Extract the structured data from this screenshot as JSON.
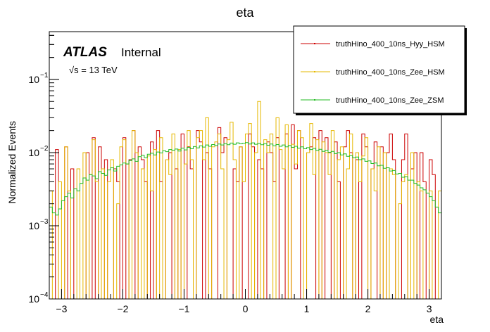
{
  "chart_data": {
    "type": "histogram",
    "title": "eta",
    "xlabel": "eta",
    "ylabel": "Normalized Events",
    "xlim": [
      -3.2,
      3.2
    ],
    "ylim": [
      0.0001,
      0.45
    ],
    "yscale": "log",
    "x_ticks": [
      -3,
      -2,
      -1,
      0,
      1,
      2,
      3
    ],
    "x_tick_labels": [
      "−3",
      "−2",
      "−1",
      "0",
      "1",
      "2",
      "3"
    ],
    "y_ticks": [
      0.0001,
      0.001,
      0.01,
      0.1
    ],
    "y_tick_bases": [
      "10",
      "10",
      "10",
      "10"
    ],
    "y_tick_exponents": [
      "−4",
      "−3",
      "−2",
      "−1"
    ],
    "atlas_label": "ATLAS",
    "atlas_status": "Internal",
    "energy_label": "√s = 13 TeV",
    "legend_position": "top-right",
    "bin_count": 128,
    "series": [
      {
        "name": "truthHino_400_10ns_Hyy_HSM",
        "color": "#cc0000",
        "values": [
          0.0001,
          0.0001,
          0.011,
          0.0001,
          0.0001,
          0.012,
          0.0001,
          0.006,
          0.0001,
          0.0001,
          0.0001,
          0.0001,
          0.01,
          0.0001,
          0.016,
          0.0001,
          0.012,
          0.0001,
          0.008,
          0.0001,
          0.0001,
          0.006,
          0.004,
          0.0001,
          0.016,
          0.0001,
          0.008,
          0.02,
          0.0001,
          0.012,
          0.008,
          0.004,
          0.0001,
          0.014,
          0.0001,
          0.02,
          0.004,
          0.0001,
          0.008,
          0.01,
          0.0001,
          0.006,
          0.0001,
          0.018,
          0.0001,
          0.012,
          0.006,
          0.0001,
          0.02,
          0.014,
          0.0001,
          0.01,
          0.006,
          0.0001,
          0.0001,
          0.022,
          0.01,
          0.016,
          0.0001,
          0.0001,
          0.006,
          0.004,
          0.012,
          0.0001,
          0.0001,
          0.018,
          0.012,
          0.0001,
          0.008,
          0.006,
          0.0001,
          0.014,
          0.01,
          0.004,
          0.016,
          0.0001,
          0.0001,
          0.018,
          0.0001,
          0.024,
          0.006,
          0.02,
          0.0001,
          0.0001,
          0.01,
          0.012,
          0.016,
          0.0001,
          0.02,
          0.0001,
          0.016,
          0.01,
          0.0001,
          0.014,
          0.004,
          0.0001,
          0.012,
          0.02,
          0.01,
          0.0001,
          0.008,
          0.0001,
          0.018,
          0.012,
          0.0001,
          0.006,
          0.014,
          0.0001,
          0.012,
          0.0001,
          0.01,
          0.018,
          0.008,
          0.0001,
          0.0001,
          0.008,
          0.018,
          0.0001,
          0.006,
          0.01,
          0.0001,
          0.01,
          0.004,
          0.0001,
          0.008,
          0.005,
          0.0001,
          0.0001
        ]
      },
      {
        "name": "truthHino_400_10ns_Zee_HSM",
        "color": "#e6b800",
        "values": [
          0.003,
          0.0001,
          0.0001,
          0.004,
          0.0001,
          0.012,
          0.003,
          0.0001,
          0.0001,
          0.006,
          0.0001,
          0.01,
          0.0001,
          0.005,
          0.015,
          0.004,
          0.0001,
          0.006,
          0.0001,
          0.004,
          0.008,
          0.0001,
          0.002,
          0.012,
          0.015,
          0.007,
          0.0001,
          0.02,
          0.01,
          0.0001,
          0.006,
          0.0001,
          0.009,
          0.003,
          0.011,
          0.0001,
          0.016,
          0.0001,
          0.008,
          0.005,
          0.018,
          0.0001,
          0.011,
          0.0001,
          0.007,
          0.02,
          0.008,
          0.0001,
          0.016,
          0.02,
          0.008,
          0.03,
          0.0001,
          0.012,
          0.014,
          0.018,
          0.006,
          0.0001,
          0.015,
          0.026,
          0.008,
          0.0001,
          0.012,
          0.004,
          0.018,
          0.025,
          0.0001,
          0.01,
          0.05,
          0.0001,
          0.015,
          0.01,
          0.018,
          0.0001,
          0.03,
          0.011,
          0.006,
          0.024,
          0.0001,
          0.013,
          0.007,
          0.02,
          0.016,
          0.0001,
          0.01,
          0.025,
          0.005,
          0.015,
          0.0001,
          0.014,
          0.01,
          0.005,
          0.02,
          0.0001,
          0.008,
          0.012,
          0.0001,
          0.006,
          0.018,
          0.0001,
          0.01,
          0.004,
          0.009,
          0.016,
          0.0001,
          0.006,
          0.003,
          0.012,
          0.0001,
          0.01,
          0.0001,
          0.006,
          0.005,
          0.0001,
          0.002,
          0.004,
          0.005,
          0.0001,
          0.01,
          0.0001,
          0.004,
          0.003,
          0.0001,
          0.0001,
          0.003,
          0.0001,
          0.0001,
          0.003
        ]
      },
      {
        "name": "truthHino_400_10ns_Zee_ZSM",
        "color": "#22bb22",
        "values": [
          0.0018,
          0.0015,
          0.0014,
          0.0017,
          0.0022,
          0.0025,
          0.0028,
          0.0024,
          0.0032,
          0.003,
          0.0038,
          0.0045,
          0.0042,
          0.005,
          0.0048,
          0.0044,
          0.0055,
          0.0052,
          0.0049,
          0.0058,
          0.0062,
          0.0056,
          0.0065,
          0.0068,
          0.0072,
          0.007,
          0.0078,
          0.0082,
          0.0076,
          0.0088,
          0.0092,
          0.0085,
          0.0095,
          0.0098,
          0.0093,
          0.0102,
          0.0099,
          0.0106,
          0.0103,
          0.011,
          0.0108,
          0.0112,
          0.0105,
          0.0115,
          0.0109,
          0.0118,
          0.0113,
          0.0121,
          0.0116,
          0.0124,
          0.0119,
          0.0127,
          0.0122,
          0.0129,
          0.0125,
          0.0131,
          0.0127,
          0.0133,
          0.0128,
          0.0135,
          0.013,
          0.0136,
          0.0132,
          0.0134,
          0.0137,
          0.0131,
          0.0136,
          0.013,
          0.0134,
          0.0128,
          0.0133,
          0.0126,
          0.0131,
          0.0124,
          0.0129,
          0.0122,
          0.0127,
          0.012,
          0.0125,
          0.0118,
          0.0122,
          0.0115,
          0.012,
          0.0113,
          0.0117,
          0.011,
          0.0114,
          0.0107,
          0.0111,
          0.0104,
          0.0108,
          0.0101,
          0.0104,
          0.0097,
          0.01,
          0.0093,
          0.0096,
          0.0089,
          0.0091,
          0.0085,
          0.0087,
          0.008,
          0.0082,
          0.0076,
          0.0077,
          0.0071,
          0.0072,
          0.0066,
          0.0067,
          0.0061,
          0.0062,
          0.0056,
          0.0057,
          0.0051,
          0.0052,
          0.0046,
          0.0047,
          0.0042,
          0.0042,
          0.0038,
          0.0036,
          0.0033,
          0.0031,
          0.0028,
          0.0025,
          0.0022,
          0.0018,
          0.0015
        ]
      }
    ]
  }
}
